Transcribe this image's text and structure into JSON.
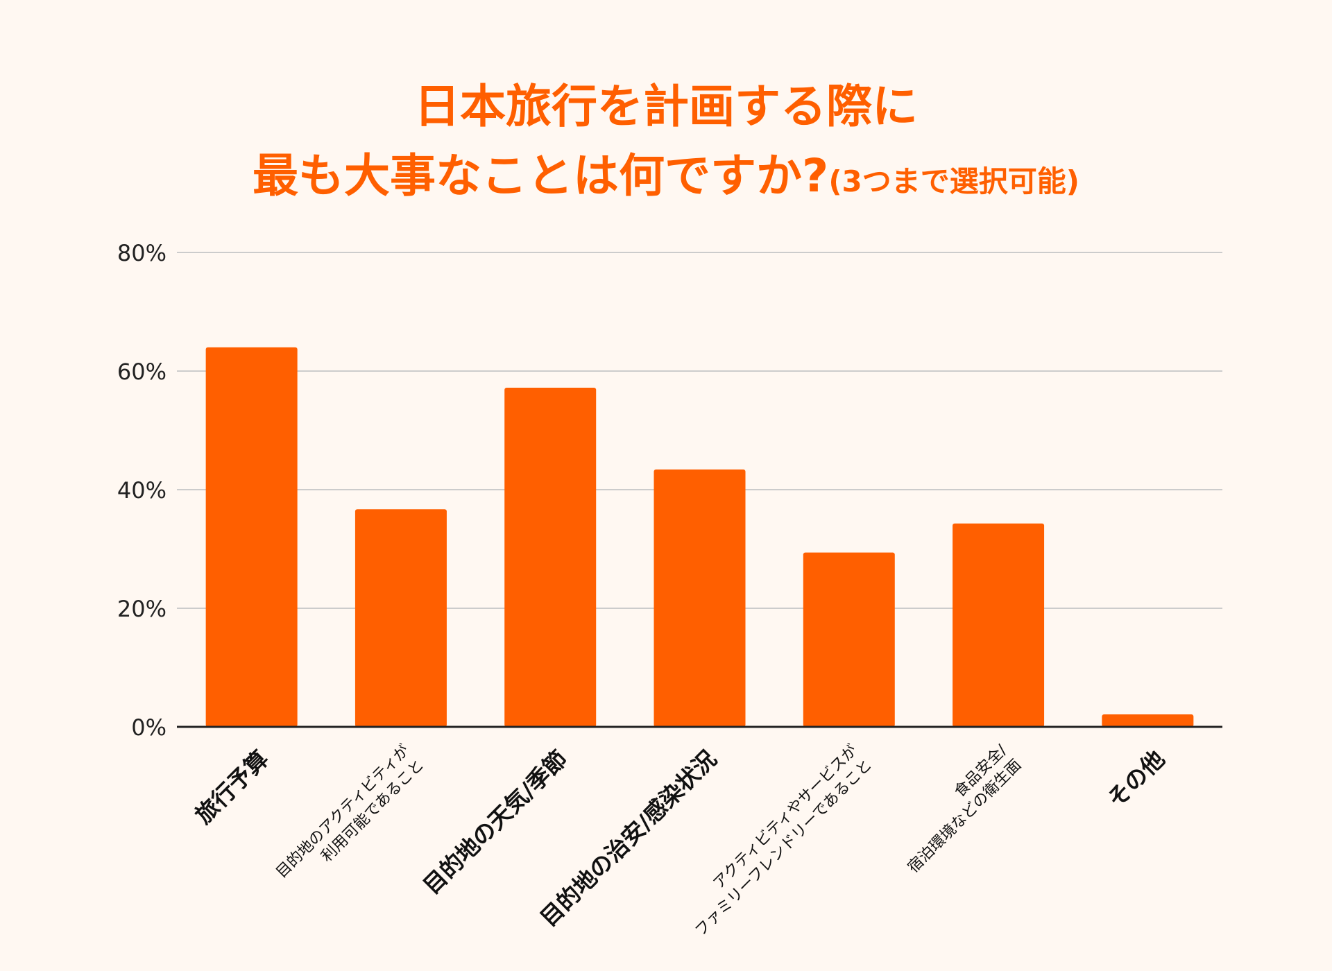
{
  "chart_data": {
    "type": "bar",
    "title": {
      "line1": "日本旅行を計画する際に",
      "line2_main": "最も大事なことは何ですか?",
      "line2_suffix": "(3つまで選択可能)"
    },
    "categories": [
      [
        "旅行予算"
      ],
      [
        "目的地のアクティビティが",
        "利用可能であること"
      ],
      [
        "目的地の天気/季節"
      ],
      [
        "目的地の治安/感染状況"
      ],
      [
        "アクティビティやサービスが",
        "ファミリーフレンドリーであること"
      ],
      [
        "食品安全/",
        "宿泊環境などの衛生面"
      ],
      [
        "その他"
      ]
    ],
    "label_sizes": [
      "large",
      "small",
      "large",
      "large",
      "small",
      "small",
      "large"
    ],
    "values": [
      64,
      36.7,
      57.2,
      43.4,
      29.4,
      34.3,
      2.1
    ],
    "ylim": [
      0,
      80
    ],
    "yticks": [
      0,
      20,
      40,
      60,
      80
    ],
    "ytick_labels": [
      "0%",
      "20%",
      "40%",
      "60%",
      "80%"
    ],
    "grid": true,
    "bar_color": "#ff5f00",
    "title_color": "#ff5f00",
    "grid_color": "#cccccc",
    "axis_color": "#222222"
  }
}
